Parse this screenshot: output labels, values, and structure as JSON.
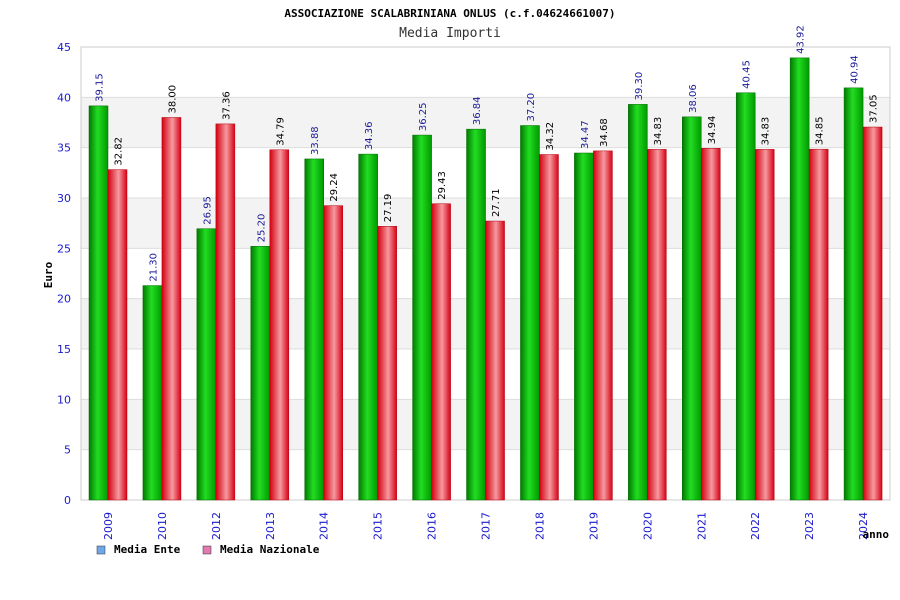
{
  "chart_data": {
    "type": "bar",
    "title": "ASSOCIAZIONE SCALABRINIANA ONLUS (c.f.04624661007)",
    "subtitle": "Media Importi",
    "ylabel": "Euro",
    "xlabel": "anno",
    "ylim": [
      0,
      45
    ],
    "yticks": [
      0,
      5,
      10,
      15,
      20,
      25,
      30,
      35,
      40,
      45
    ],
    "grid": true,
    "legend_position": "bottom-left",
    "categories": [
      "2009",
      "2010",
      "2012",
      "2013",
      "2014",
      "2015",
      "2016",
      "2017",
      "2018",
      "2019",
      "2020",
      "2021",
      "2022",
      "2023",
      "2024"
    ],
    "series": [
      {
        "name": "Media Ente",
        "color": "#00b300",
        "legend_color": "#6fa8e8",
        "values": [
          39.15,
          21.3,
          26.95,
          25.2,
          33.88,
          34.36,
          36.25,
          36.84,
          37.2,
          34.47,
          39.3,
          38.06,
          40.45,
          43.92,
          40.94
        ],
        "labels": [
          "39.15",
          "21.30",
          "26.95",
          "25.20",
          "33.88",
          "34.36",
          "36.25",
          "36.84",
          "37.20",
          "34.47",
          "39.30",
          "38.06",
          "40.45",
          "43.92",
          "40.94"
        ]
      },
      {
        "name": "Media Nazionale",
        "color": "#e8101e",
        "legend_color": "#e07ab0",
        "values": [
          32.82,
          38.0,
          37.36,
          34.79,
          29.24,
          27.19,
          29.43,
          27.71,
          34.32,
          34.68,
          34.83,
          34.94,
          34.83,
          34.85,
          37.05
        ],
        "labels": [
          "32.82",
          "38.00",
          "37.36",
          "34.79",
          "29.24",
          "27.19",
          "29.43",
          "27.71",
          "34.32",
          "34.68",
          "34.83",
          "34.94",
          "34.83",
          "34.85",
          "37.05"
        ]
      }
    ]
  }
}
